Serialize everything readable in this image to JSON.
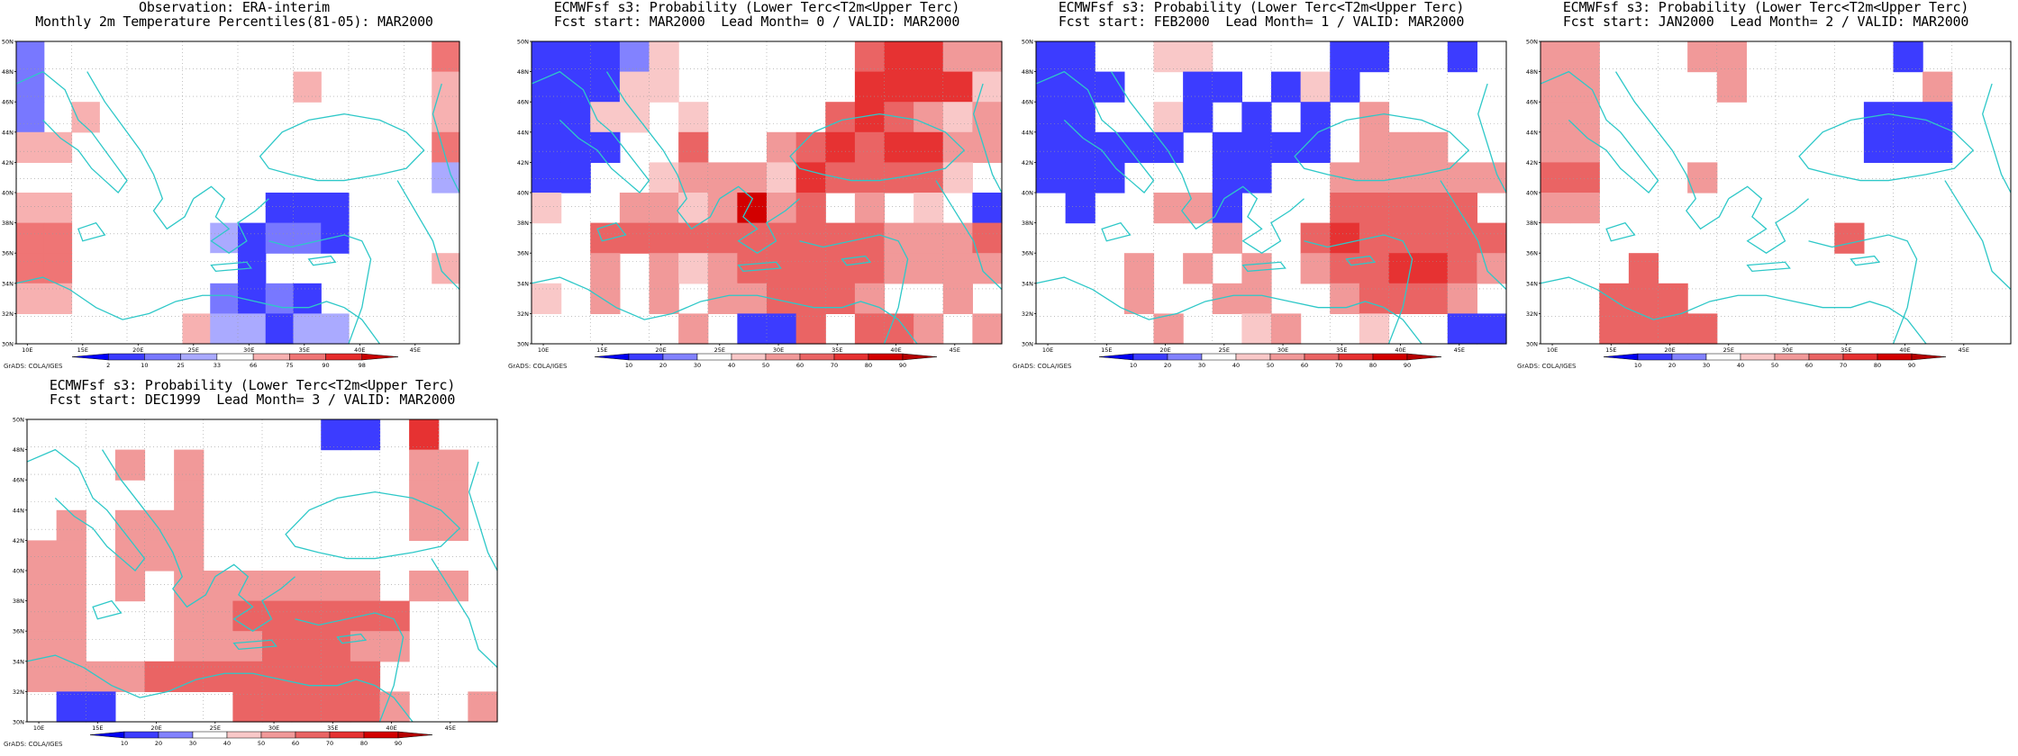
{
  "figure": {
    "credit": "GrADS: COLA/IGES",
    "lat_labels": [
      "30N",
      "32N",
      "34N",
      "36N",
      "38N",
      "40N",
      "42N",
      "44N",
      "46N",
      "48N",
      "50N"
    ],
    "lon_labels": [
      "10E",
      "15E",
      "20E",
      "25E",
      "30E",
      "35E",
      "40E",
      "45E"
    ],
    "grid_ncols": 16,
    "grid_nrows": 10,
    "coastline_color": "#2ec8c8"
  },
  "panels": [
    {
      "id": "obs",
      "title_line1": "Observation: ERA-interim",
      "title_line2": "Monthly 2m Temperature Percentiles(81-05): MAR2000",
      "colorbar": {
        "labels": [
          "2",
          "10",
          "25",
          "33",
          "66",
          "75",
          "90",
          "98"
        ],
        "colors": [
          "#0000ff",
          "#3c3cff",
          "#7878ff",
          "#aaaaff",
          "#ffffff",
          "#f7b1b1",
          "#ef7575",
          "#e62c2c",
          "#c80000"
        ]
      },
      "grid": [
        "2000000000000006",
        "2000000000500005",
        "2050000000000005",
        "5500000000000006",
        "0000000000000003",
        "5500000001110000",
        "6600000312210000",
        "6600000410000005",
        "5500000212100000",
        "0000005331330000"
      ]
    },
    {
      "id": "lead0",
      "title_line1": "ECMWFsf s3: Probability (Lower Terc<T2m<Upper Terc)",
      "title_line2": "Fcst start: MAR2000  Lead Month= 0 / VALID: MAR2000",
      "colorbar": {
        "labels": [
          "10",
          "20",
          "30",
          "40",
          "50",
          "60",
          "70",
          "80",
          "90"
        ],
        "colors": [
          "#0000f0",
          "#3c3cff",
          "#8282ff",
          "#ffffff",
          "#f9c8c8",
          "#f19999",
          "#ea6464",
          "#e63232",
          "#d20000",
          "#b40000"
        ]
      },
      "grid": [
        "1112400000067755",
        "1114400000077774",
        "1144040000676545",
        "1110060056767755",
        "1100455547666640",
        "4005545856050401",
        "0066666666665556",
        "0050545666665555",
        "4050505566650050",
        "0000050116066505"
      ]
    },
    {
      "id": "lead1",
      "title_line1": "ECMWFsf s3: Probability (Lower Terc<T2m<Upper Terc)",
      "title_line2": "Fcst start: FEB2000  Lead Month= 1 / VALID: MAR2000",
      "colorbar": {
        "labels": [
          "10",
          "20",
          "30",
          "40",
          "50",
          "60",
          "70",
          "80",
          "90"
        ],
        "colors": [
          "#0000f0",
          "#3c3cff",
          "#8282ff",
          "#ffffff",
          "#f9c8c8",
          "#f19999",
          "#ea6464",
          "#e63232",
          "#d20000",
          "#b40000"
        ]
      },
      "grid": [
        "1100440000110010",
        "1110011014100000",
        "1100410101050000",
        "1111101111055500",
        "1110001100555555",
        "0100551000666660",
        "0000005006766666",
        "0005050505667765",
        "0005005500566650",
        "0000500450040011"
      ]
    },
    {
      "id": "lead2",
      "title_line1": "ECMWFsf s3: Probability (Lower Terc<T2m<Upper Terc)",
      "title_line2": "Fcst start: JAN2000  Lead Month= 2 / VALID: MAR2000",
      "colorbar": {
        "labels": [
          "10",
          "20",
          "30",
          "40",
          "50",
          "60",
          "70",
          "80",
          "90"
        ],
        "colors": [
          "#0000f0",
          "#3c3cff",
          "#8282ff",
          "#ffffff",
          "#f9c8c8",
          "#f19999",
          "#ea6464",
          "#e63232",
          "#d20000",
          "#b40000"
        ]
      },
      "grid": [
        "5500055000001000",
        "5500005000000500",
        "5500000000011100",
        "5500000000011100",
        "6600050000000000",
        "5500000000000000",
        "0000000000600000",
        "0006000000000000",
        "0066600000000000",
        "0066660000000000"
      ]
    },
    {
      "id": "lead3",
      "title_line1": "ECMWFsf s3: Probability (Lower Terc<T2m<Upper Terc)",
      "title_line2": "Fcst start: DEC1999  Lead Month= 3 / VALID: MAR2000",
      "colorbar": {
        "labels": [
          "10",
          "20",
          "30",
          "40",
          "50",
          "60",
          "70",
          "80",
          "90"
        ],
        "colors": [
          "#0000f0",
          "#3c3cff",
          "#8282ff",
          "#ffffff",
          "#f9c8c8",
          "#f19999",
          "#ea6464",
          "#e63232",
          "#d20000",
          "#b40000"
        ]
      },
      "grid": [
        "0000000000110700",
        "0005050000000550",
        "0000050000000550",
        "0505550000000550",
        "5505550000000000",
        "5505055555550550",
        "5500055666666000",
        "5500055566655000",
        "5555666666660000",
        "0110000666665005"
      ]
    }
  ]
}
